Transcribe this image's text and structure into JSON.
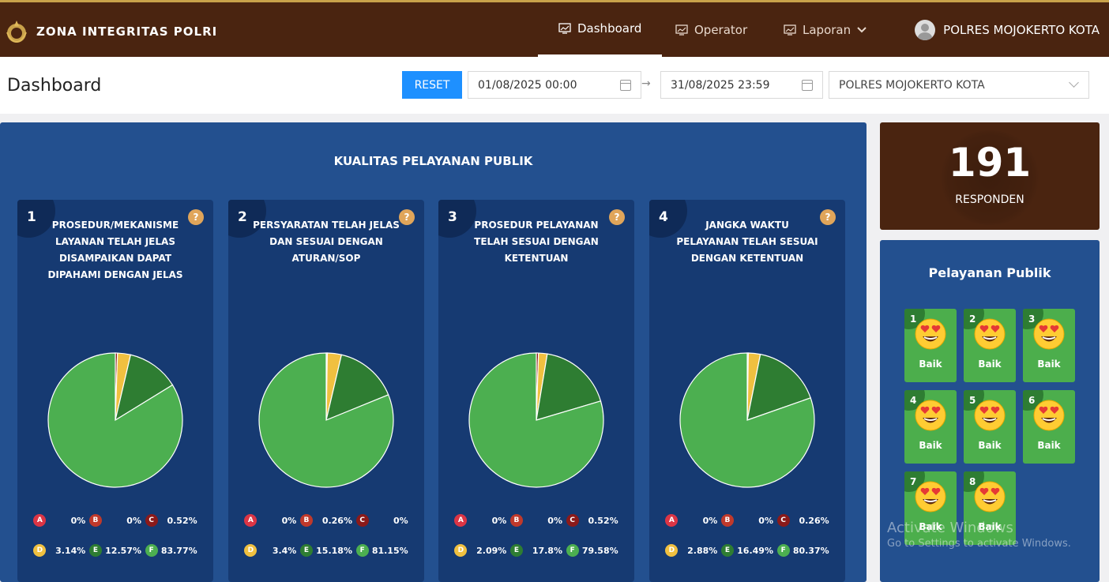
{
  "nav": {
    "brand": "ZONA INTEGRITAS POLRI",
    "items": [
      {
        "label": "Dashboard",
        "icon": "chart-monitor-icon"
      },
      {
        "label": "Operator",
        "icon": "chart-monitor-icon"
      },
      {
        "label": "Laporan",
        "icon": "chart-monitor-icon"
      }
    ],
    "user": "POLRES MOJOKERTO KOTA"
  },
  "header": {
    "title": "Dashboard",
    "reset_label": "RESET",
    "date_from": "01/08/2025 00:00",
    "date_to": "31/08/2025 23:59",
    "arrow": "→",
    "unit_select": "POLRES MOJOKERTO KOTA"
  },
  "main": {
    "title": "KUALITAS PELAYANAN PUBLIK",
    "help": "?",
    "legend_colors": {
      "A": "#dc3545",
      "B": "#c0392b",
      "C": "#8b1a1a",
      "D": "#f0c040",
      "E": "#2e7d32",
      "F": "#4caf50"
    },
    "questions": [
      {
        "num": "1",
        "title": "PROSEDUR/MEKANISME LAYANAN TELAH JELAS DISAMPAIKAN DAPAT DIPAHAMI DENGAN JELAS",
        "values": {
          "A": "0%",
          "B": "0%",
          "C": "0.52%",
          "D": "3.14%",
          "E": "12.57%",
          "F": "83.77%"
        }
      },
      {
        "num": "2",
        "title": "PERSYARATAN TELAH JELAS DAN SESUAI DENGAN ATURAN/SOP",
        "values": {
          "A": "0%",
          "B": "0.26%",
          "C": "0%",
          "D": "3.4%",
          "E": "15.18%",
          "F": "81.15%"
        }
      },
      {
        "num": "3",
        "title": "PROSEDUR PELAYANAN TELAH SESUAI DENGAN KETENTUAN",
        "values": {
          "A": "0%",
          "B": "0%",
          "C": "0.52%",
          "D": "2.09%",
          "E": "17.8%",
          "F": "79.58%"
        }
      },
      {
        "num": "4",
        "title": "JANGKA WAKTU PELAYANAN TELAH SESUAI DENGAN KETENTUAN",
        "values": {
          "A": "0%",
          "B": "0%",
          "C": "0.26%",
          "D": "2.88%",
          "E": "16.49%",
          "F": "80.37%"
        }
      }
    ]
  },
  "respondents": {
    "count": "191",
    "label": "RESPONDEN"
  },
  "pelayanan": {
    "title": "Pelayanan Publik",
    "tiles": [
      {
        "num": "1",
        "label": "Baik"
      },
      {
        "num": "2",
        "label": "Baik"
      },
      {
        "num": "3",
        "label": "Baik"
      },
      {
        "num": "4",
        "label": "Baik"
      },
      {
        "num": "5",
        "label": "Baik"
      },
      {
        "num": "6",
        "label": "Baik"
      },
      {
        "num": "7",
        "label": "Baik"
      },
      {
        "num": "8",
        "label": "Baik"
      }
    ]
  },
  "watermark": {
    "line1": "Activate Windows",
    "line2": "Go to Settings to activate Windows."
  }
}
